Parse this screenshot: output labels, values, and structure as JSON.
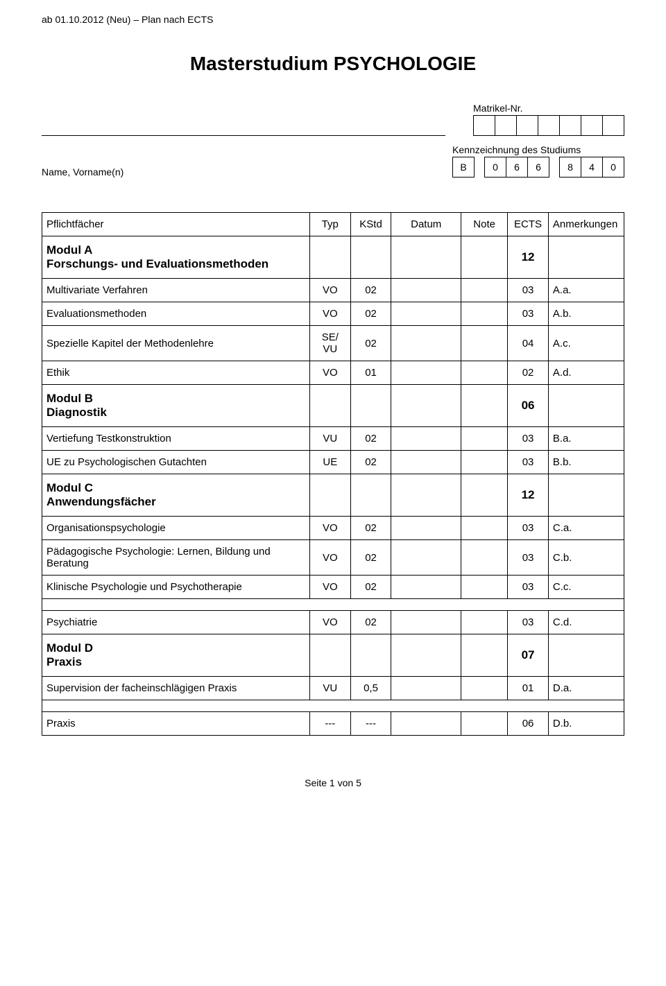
{
  "top_note": "ab 01.10.2012 (Neu) – Plan nach ECTS",
  "title": "Masterstudium PSYCHOLOGIE",
  "matrikel_label": "Matrikel-Nr.",
  "name_label": "Name, Vorname(n)",
  "kenn_label": "Kennzeichnung des Studiums",
  "kenn_boxes": [
    "B",
    "0",
    "6",
    "6",
    "8",
    "4",
    "0"
  ],
  "headers": {
    "pflicht": "Pflichtfächer",
    "typ": "Typ",
    "kstd": "KStd",
    "datum": "Datum",
    "note": "Note",
    "ects": "ECTS",
    "anm": "Anmerkungen"
  },
  "rows": [
    {
      "kind": "module",
      "name_l1": "Modul A",
      "name_l2": "Forschungs- und Evaluationsmethoden",
      "ects": "12"
    },
    {
      "kind": "item",
      "name": "Multivariate Verfahren",
      "typ": "VO",
      "kstd": "02",
      "ects": "03",
      "anm": "A.a."
    },
    {
      "kind": "item",
      "name": "Evaluationsmethoden",
      "typ": "VO",
      "kstd": "02",
      "ects": "03",
      "anm": "A.b."
    },
    {
      "kind": "item",
      "name": "Spezielle Kapitel der Methodenlehre",
      "typ": "SE/\nVU",
      "kstd": "02",
      "ects": "04",
      "anm": "A.c."
    },
    {
      "kind": "item",
      "name": "Ethik",
      "typ": "VO",
      "kstd": "01",
      "ects": "02",
      "anm": "A.d."
    },
    {
      "kind": "module",
      "name_l1": "Modul B",
      "name_l2": "Diagnostik",
      "ects": "06"
    },
    {
      "kind": "item",
      "name": "Vertiefung Testkonstruktion",
      "typ": "VU",
      "kstd": "02",
      "ects": "03",
      "anm": "B.a."
    },
    {
      "kind": "item",
      "name": "UE zu Psychologischen Gutachten",
      "typ": "UE",
      "kstd": "02",
      "ects": "03",
      "anm": "B.b."
    },
    {
      "kind": "module",
      "name_l1": "Modul C",
      "name_l2": "Anwendungsfächer",
      "ects": "12"
    },
    {
      "kind": "item",
      "name": "Organisationspsychologie",
      "typ": "VO",
      "kstd": "02",
      "ects": "03",
      "anm": "C.a."
    },
    {
      "kind": "item",
      "name": "Pädagogische Psychologie: Lernen, Bildung und Beratung",
      "typ": "VO",
      "kstd": "02",
      "ects": "03",
      "anm": "C.b."
    },
    {
      "kind": "item",
      "name": "Klinische Psychologie und Psychotherapie",
      "typ": "VO",
      "kstd": "02",
      "ects": "03",
      "anm": "C.c."
    },
    {
      "kind": "spacer"
    },
    {
      "kind": "item",
      "name": "Psychiatrie",
      "typ": "VO",
      "kstd": "02",
      "ects": "03",
      "anm": "C.d."
    },
    {
      "kind": "module",
      "name_l1": "Modul D",
      "name_l2": "Praxis",
      "ects": "07"
    },
    {
      "kind": "item",
      "name": "Supervision der facheinschlägigen Praxis",
      "typ": "VU",
      "kstd": "0,5",
      "ects": "01",
      "anm": "D.a."
    },
    {
      "kind": "spacer"
    },
    {
      "kind": "item",
      "name": "Praxis",
      "typ": "---",
      "kstd": "---",
      "ects": "06",
      "anm": "D.b."
    }
  ],
  "footer": "Seite 1 von 5"
}
